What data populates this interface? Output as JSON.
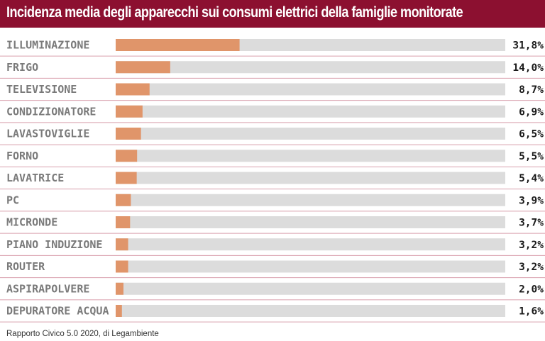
{
  "colors": {
    "header_bg": "#8c1030",
    "bar_fill": "#e0956a",
    "bar_track": "#dcdcdc",
    "separator": "#d9a0ae",
    "label_text": "#7a7a7a",
    "value_text": "#1a1a1a"
  },
  "chart_data": {
    "type": "bar",
    "orientation": "horizontal",
    "title": "Incidenza media degli apparecchi sui consumi elettrici della famiglie monitorate",
    "xlabel": "",
    "ylabel": "",
    "xlim": [
      0,
      100
    ],
    "grid": false,
    "categories": [
      "ILLUMINAZIONE",
      "FRIGO",
      "TELEVISIONE",
      "CONDIZIONATORE",
      "LAVASTOVIGLIE",
      "FORNO",
      "LAVATRICE",
      "PC",
      "MICRONDE",
      "PIANO INDUZIONE",
      "ROUTER",
      "ASPIRAPOLVERE",
      "DEPURATORE ACQUA"
    ],
    "values": [
      31.8,
      14.0,
      8.7,
      6.9,
      6.5,
      5.5,
      5.4,
      3.9,
      3.7,
      3.2,
      3.2,
      2.0,
      1.6
    ],
    "value_labels": [
      "31,8%",
      "14,0%",
      "8,7%",
      "6,9%",
      "6,5%",
      "5,5%",
      "5,4%",
      "3,9%",
      "3,7%",
      "3,2%",
      "3,2%",
      "2,0%",
      "1,6%"
    ]
  },
  "source": "Rapporto Civico 5.0 2020, di Legambiente"
}
